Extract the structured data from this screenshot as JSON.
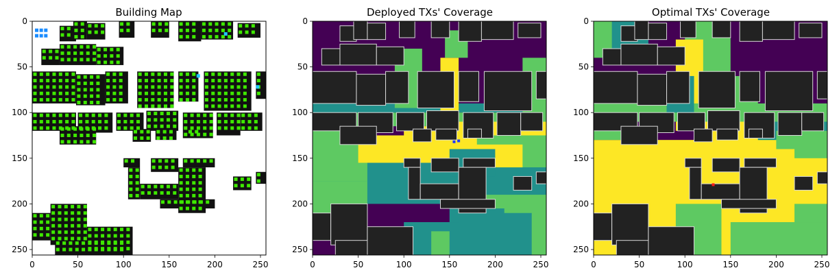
{
  "colors": {
    "building": "#111111",
    "building_gray": "#222222",
    "outline": "#d9d9d9",
    "green_marker": "#3ee800",
    "blue_marker": "#1a8cff",
    "cyan_marker": "#22c8ff",
    "cov_low": "#440154",
    "cov_mid1": "#21918c",
    "cov_mid2": "#5ec962",
    "cov_high": "#fde725",
    "deployed_tx": "#1e3cff",
    "optimal_tx": "#ff1a1a"
  },
  "chart_data": [
    {
      "type": "heatmap",
      "title": "Building Map",
      "xlim": [
        0,
        256
      ],
      "ylim": [
        256,
        0
      ],
      "xticks": [
        "0",
        "50",
        "100",
        "150",
        "200",
        "250"
      ],
      "yticks": [
        "0",
        "50",
        "100",
        "150",
        "200",
        "250"
      ]
    },
    {
      "type": "heatmap",
      "title": "Deployed TXs' Coverage",
      "xlim": [
        0,
        256
      ],
      "ylim": [
        256,
        0
      ],
      "xticks": [
        "0",
        "50",
        "100",
        "150",
        "200",
        "250"
      ],
      "yticks": [
        "0",
        "50",
        "100",
        "150",
        "200",
        "250"
      ],
      "tx_points": [
        {
          "x": 155,
          "y": 132
        },
        {
          "x": 160,
          "y": 131
        }
      ]
    },
    {
      "type": "heatmap",
      "title": "Optimal TXs' Coverage",
      "xlim": [
        0,
        256
      ],
      "ylim": [
        256,
        0
      ],
      "xticks": [
        "0",
        "50",
        "100",
        "150",
        "200",
        "250"
      ],
      "yticks": [
        "0",
        "50",
        "100",
        "150",
        "200",
        "250"
      ],
      "tx_points": [
        {
          "x": 131,
          "y": 179
        }
      ]
    }
  ]
}
